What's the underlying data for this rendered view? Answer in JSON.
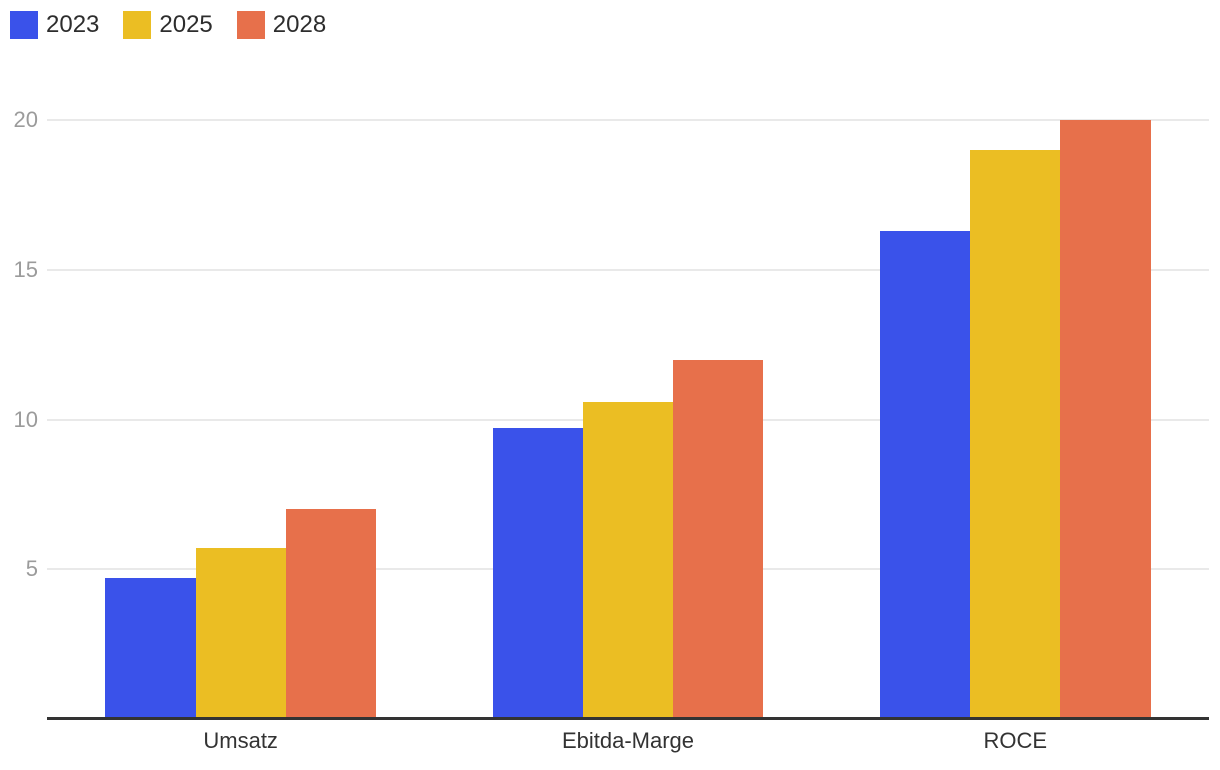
{
  "chart_data": {
    "type": "bar",
    "title": "",
    "xlabel": "",
    "ylabel": "",
    "categories": [
      "Umsatz",
      "Ebitda-Marge",
      "ROCE"
    ],
    "series": [
      {
        "name": "2023",
        "color": "#3a52ea",
        "values": [
          4.7,
          9.7,
          16.3
        ]
      },
      {
        "name": "2025",
        "color": "#ebbe23",
        "values": [
          5.7,
          10.6,
          19.0
        ]
      },
      {
        "name": "2028",
        "color": "#e7704b",
        "values": [
          7.0,
          12.0,
          20.0
        ]
      }
    ],
    "yticks": [
      5,
      10,
      15,
      20
    ],
    "ylim": [
      0,
      20
    ],
    "grid": true,
    "legend_position": "top-left",
    "grid_color": "#e9e9e9",
    "axis_color": "#333333",
    "tick_label_color": "#9b9b9b",
    "category_label_color": "#333333",
    "background_color": "#ffffff"
  }
}
